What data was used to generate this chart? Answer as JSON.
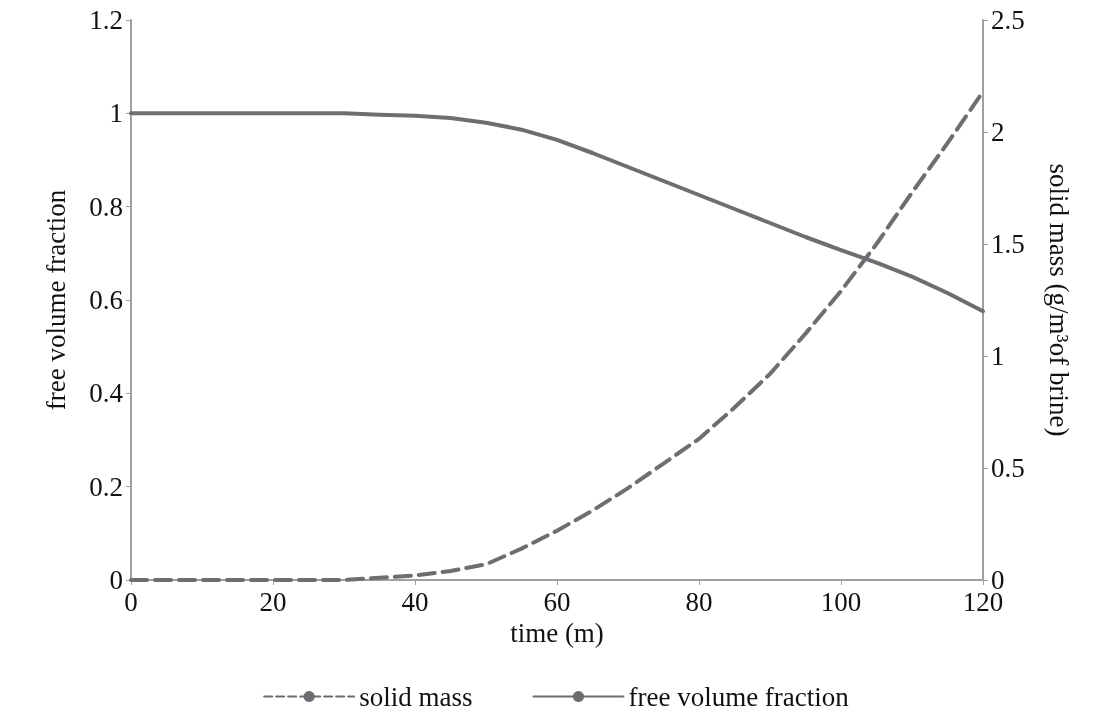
{
  "chart_data": {
    "type": "line",
    "xlabel": "time (m)",
    "ylabel": "free volume fraction",
    "y2label": "solid mass (g/m³of brine)",
    "xlim": [
      0,
      120
    ],
    "xticks": [
      0,
      20,
      40,
      60,
      80,
      100,
      120
    ],
    "ylim": [
      0,
      1.2
    ],
    "yticks": [
      0,
      0.2,
      0.4,
      0.6,
      0.8,
      1,
      1.2
    ],
    "y2lim": [
      0,
      2.5
    ],
    "y2ticks": [
      0,
      0.5,
      1,
      1.5,
      2,
      2.5
    ],
    "x": [
      0,
      10,
      20,
      30,
      35,
      40,
      45,
      50,
      55,
      60,
      65,
      70,
      75,
      80,
      85,
      90,
      95,
      100,
      105,
      110,
      115,
      120
    ],
    "series": [
      {
        "name": "solid mass",
        "color": "#6d6d72",
        "axis": "y2",
        "line_style": "dashed",
        "values": [
          0,
          0,
          0,
          0,
          0.01,
          0.02,
          0.04,
          0.07,
          0.14,
          0.22,
          0.31,
          0.41,
          0.52,
          0.63,
          0.77,
          0.92,
          1.1,
          1.29,
          1.5,
          1.73,
          1.95,
          2.18
        ]
      },
      {
        "name": "free volume fraction",
        "color": "#6d6d72",
        "line_style": "solid",
        "values": [
          1,
          1,
          1,
          1,
          0.997,
          0.995,
          0.99,
          0.98,
          0.965,
          0.943,
          0.915,
          0.885,
          0.855,
          0.825,
          0.795,
          0.765,
          0.735,
          0.707,
          0.68,
          0.65,
          0.615,
          0.576
        ]
      }
    ],
    "grid": false,
    "legend": "bottom",
    "marker": "none"
  }
}
